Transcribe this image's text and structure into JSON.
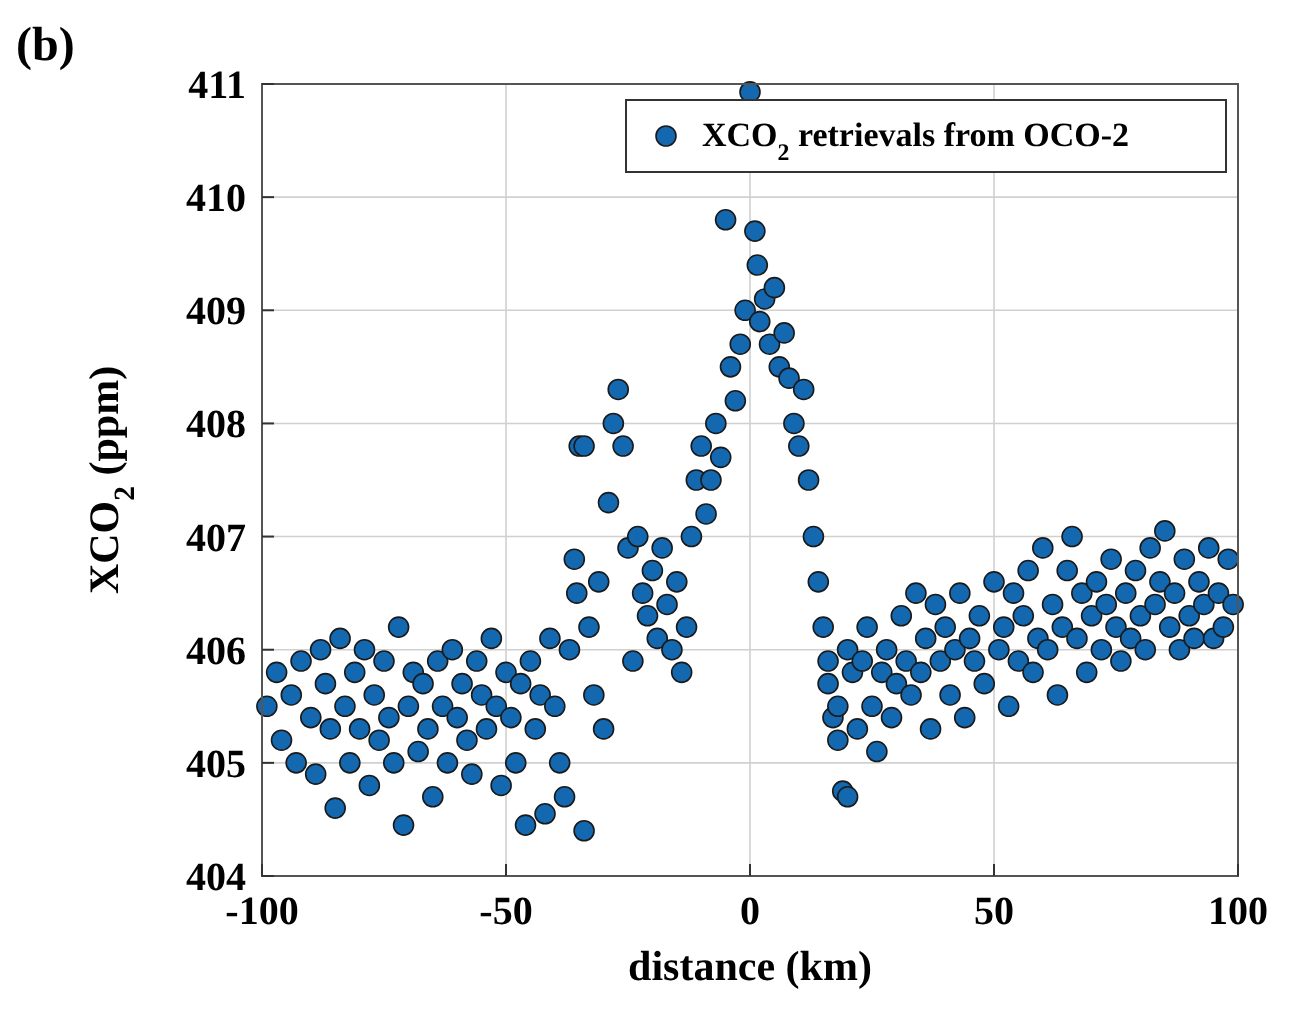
{
  "chart_data": {
    "type": "scatter",
    "title": "(b)",
    "xlabel": "distance (km)",
    "ylabel": "XCO$_{2}$ (ppm)",
    "xlim": [
      -100,
      100
    ],
    "xticks": [
      -100,
      -50,
      0,
      50,
      100
    ],
    "ylim": [
      404,
      411
    ],
    "yticks": [
      404,
      405,
      406,
      407,
      408,
      409,
      410,
      411
    ],
    "grid": true,
    "legend": "top right",
    "marker": "circle",
    "series": [
      {
        "name": "XCO$_{2}$ retrievals from OCO-2",
        "color": "#1368b0",
        "x": [
          -99,
          -97,
          -96,
          -94,
          -93,
          -92,
          -90,
          -89,
          -88,
          -87,
          -86,
          -85,
          -84,
          -83,
          -82,
          -81,
          -80,
          -79,
          -78,
          -77,
          -76,
          -75,
          -74,
          -73,
          -72,
          -71,
          -70,
          -69,
          -68,
          -67,
          -66,
          -65,
          -64,
          -63,
          -62,
          -61,
          -60,
          -59,
          -58,
          -57,
          -56,
          -55,
          -54,
          -53,
          -52,
          -51,
          -50,
          -49,
          -48,
          -47,
          -46,
          -45,
          -44,
          -43,
          -42,
          -41,
          -40,
          -39,
          -38,
          -37,
          -36,
          -35,
          -34,
          -35.5,
          -34,
          -33,
          -32,
          -31,
          -30,
          -29,
          -28,
          -27,
          -26,
          -25,
          -24,
          -23,
          -22,
          -21,
          -20,
          -19,
          -18,
          -17,
          -16,
          -15,
          -14,
          -13,
          -12,
          -11,
          -10,
          -9,
          -8,
          -7,
          -6,
          -5,
          -4,
          -3,
          -2,
          -1,
          0,
          1,
          1.5,
          2,
          3,
          4,
          5,
          6,
          7,
          8,
          9,
          10,
          11,
          12,
          13,
          14,
          15,
          16,
          17,
          18,
          19,
          20,
          16,
          18,
          20,
          21,
          22,
          23,
          24,
          25,
          26,
          27,
          28,
          29,
          30,
          31,
          32,
          33,
          34,
          35,
          36,
          37,
          38,
          39,
          40,
          41,
          42,
          43,
          44,
          45,
          46,
          47,
          48,
          50,
          51,
          52,
          53,
          54,
          55,
          56,
          57,
          58,
          59,
          60,
          61,
          62,
          63,
          64,
          65,
          66,
          67,
          68,
          69,
          70,
          71,
          72,
          73,
          74,
          75,
          76,
          77,
          78,
          79,
          80,
          81,
          82,
          83,
          84,
          85,
          86,
          87,
          88,
          89,
          90,
          91,
          92,
          93,
          94,
          95,
          96,
          97,
          98,
          99
        ],
        "values": [
          405.5,
          405.8,
          405.2,
          405.6,
          405.0,
          405.9,
          405.4,
          404.9,
          406.0,
          405.7,
          405.3,
          404.6,
          406.1,
          405.5,
          405.0,
          405.8,
          405.3,
          406.0,
          404.8,
          405.6,
          405.2,
          405.9,
          405.4,
          405.0,
          406.2,
          404.45,
          405.5,
          405.8,
          405.1,
          405.7,
          405.3,
          404.7,
          405.9,
          405.5,
          405.0,
          406.0,
          405.4,
          405.7,
          405.2,
          404.9,
          405.9,
          405.6,
          405.3,
          406.1,
          405.5,
          404.8,
          405.8,
          405.4,
          405.0,
          405.7,
          404.45,
          405.9,
          405.3,
          405.6,
          404.55,
          406.1,
          405.5,
          405.0,
          404.7,
          406.0,
          406.8,
          407.8,
          407.8,
          406.5,
          404.4,
          406.2,
          405.6,
          406.6,
          405.3,
          407.3,
          408.0,
          408.3,
          407.8,
          406.9,
          405.9,
          407.0,
          406.5,
          406.3,
          406.7,
          406.1,
          406.9,
          406.4,
          406.0,
          406.6,
          405.8,
          406.2,
          407.0,
          407.5,
          407.8,
          407.2,
          407.5,
          408.0,
          407.7,
          409.8,
          408.5,
          408.2,
          408.7,
          409.0,
          410.93,
          409.7,
          409.4,
          408.9,
          409.1,
          408.7,
          409.2,
          408.5,
          408.8,
          408.4,
          408.0,
          407.8,
          408.3,
          407.5,
          407.0,
          406.6,
          406.2,
          405.9,
          405.4,
          405.2,
          404.75,
          404.7,
          405.7,
          405.5,
          406.0,
          405.8,
          405.3,
          405.9,
          406.2,
          405.5,
          405.1,
          405.8,
          406.0,
          405.4,
          405.7,
          406.3,
          405.9,
          405.6,
          406.5,
          405.8,
          406.1,
          405.3,
          406.4,
          405.9,
          406.2,
          405.6,
          406.0,
          406.5,
          405.4,
          406.1,
          405.9,
          406.3,
          405.7,
          406.6,
          406.0,
          406.2,
          405.5,
          406.5,
          405.9,
          406.3,
          406.7,
          405.8,
          406.1,
          406.9,
          406.0,
          406.4,
          405.6,
          406.2,
          406.7,
          407.0,
          406.1,
          406.5,
          405.8,
          406.3,
          406.6,
          406.0,
          406.4,
          406.8,
          406.2,
          405.9,
          406.5,
          406.1,
          406.7,
          406.3,
          406.0,
          406.9,
          406.4,
          406.6,
          407.05,
          406.2,
          406.5,
          406.0,
          406.8,
          406.3,
          406.1,
          406.6,
          406.4,
          406.9,
          406.1,
          406.5,
          406.2,
          406.8,
          406.4
        ]
      }
    ]
  }
}
